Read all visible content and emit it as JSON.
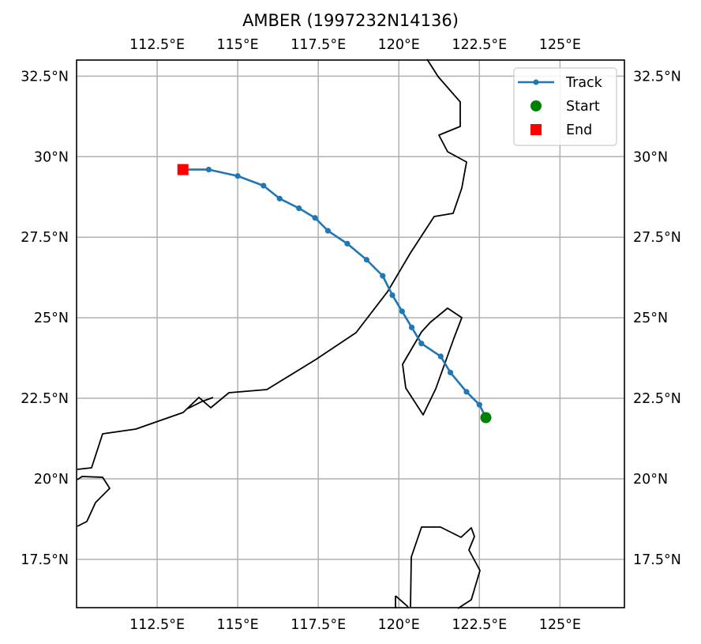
{
  "title": "AMBER (1997232N14136)",
  "colors": {
    "track": "#1f77b4",
    "start": "#008000",
    "end": "#ff0000"
  },
  "chart_data": {
    "type": "map-track",
    "title": "AMBER (1997232N14136)",
    "xlim": [
      110,
      127
    ],
    "ylim": [
      16,
      33
    ],
    "grid": true,
    "x_ticks": [
      {
        "value": 112.5,
        "label": "112.5°E"
      },
      {
        "value": 115,
        "label": "115°E"
      },
      {
        "value": 117.5,
        "label": "117.5°E"
      },
      {
        "value": 120,
        "label": "120°E"
      },
      {
        "value": 122.5,
        "label": "122.5°E"
      },
      {
        "value": 125,
        "label": "125°E"
      }
    ],
    "y_ticks": [
      {
        "value": 17.5,
        "label": "17.5°N"
      },
      {
        "value": 20,
        "label": "20°N"
      },
      {
        "value": 22.5,
        "label": "22.5°N"
      },
      {
        "value": 25,
        "label": "25°N"
      },
      {
        "value": 27.5,
        "label": "27.5°N"
      },
      {
        "value": 30,
        "label": "30°N"
      },
      {
        "value": 32.5,
        "label": "32.5°N"
      }
    ],
    "legend_position": "top-right",
    "legend": [
      {
        "key": "track",
        "label": "Track"
      },
      {
        "key": "start",
        "label": "Start"
      },
      {
        "key": "end",
        "label": "End"
      }
    ],
    "track": {
      "name": "Track",
      "lon": [
        122.7,
        122.5,
        122.1,
        121.6,
        121.3,
        120.7,
        120.4,
        120.1,
        119.8,
        119.5,
        119.0,
        118.4,
        117.8,
        117.4,
        116.9,
        116.3,
        115.8,
        115.0,
        114.1,
        113.3
      ],
      "lat": [
        21.9,
        22.3,
        22.7,
        23.3,
        23.8,
        24.2,
        24.7,
        25.2,
        25.7,
        26.3,
        26.8,
        27.3,
        27.7,
        28.1,
        28.4,
        28.7,
        29.1,
        29.4,
        29.6,
        29.6
      ]
    },
    "start": {
      "label": "Start",
      "lon": 122.7,
      "lat": 21.9
    },
    "end": {
      "label": "End",
      "lon": 113.3,
      "lat": 29.6
    }
  }
}
